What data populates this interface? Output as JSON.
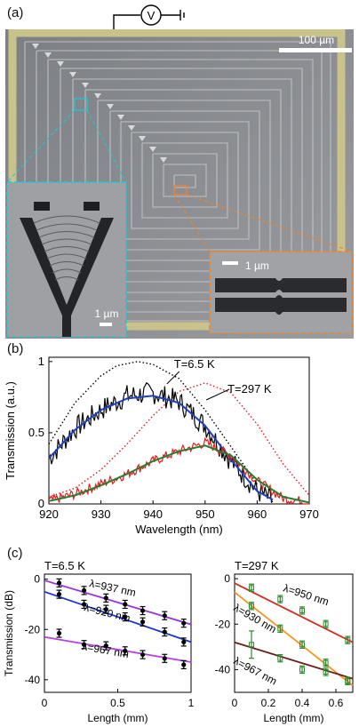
{
  "panel_a": {
    "label": "(a)",
    "meter_symbol": "V",
    "scale_bar_main": "100 µm",
    "scale_bar_left_inset": "1 µm",
    "scale_bar_right_inset": "1 µm"
  },
  "panel_b": {
    "label": "(b)"
  },
  "panel_c": {
    "label": "(c)"
  },
  "chart_data": [
    {
      "type": "line",
      "xlabel": "Wavelength (nm)",
      "ylabel": "Transmission (a.u.)",
      "xlim": [
        920,
        970
      ],
      "ylim": [
        0,
        1.03
      ],
      "xticks": [
        920,
        930,
        940,
        950,
        960,
        970
      ],
      "yticks": [
        0,
        0.5,
        1
      ],
      "ytick_labels": [
        "0",
        "0.5",
        "1"
      ],
      "annotations": [
        {
          "text": "T=6.5 K",
          "at": [
            943,
            0.78
          ]
        },
        {
          "text": "T=297 K",
          "at": [
            955,
            0.72
          ]
        }
      ],
      "series": [
        {
          "style": "dotted",
          "color": "#000000",
          "x": [
            920,
            925,
            930,
            933,
            937,
            940,
            945,
            950,
            955,
            960
          ],
          "y": [
            0.42,
            0.71,
            0.9,
            0.97,
            1.0,
            0.98,
            0.88,
            0.66,
            0.4,
            0.14
          ]
        },
        {
          "style": "dotted",
          "color": "#e41a1c",
          "x": [
            920,
            925,
            930,
            935,
            940,
            945,
            950,
            955,
            960,
            965,
            970
          ],
          "y": [
            0.05,
            0.11,
            0.24,
            0.42,
            0.62,
            0.79,
            0.85,
            0.78,
            0.56,
            0.28,
            0.06
          ]
        },
        {
          "style": "noisy",
          "color": "#000000",
          "x": [
            920,
            925,
            930,
            935,
            940,
            945,
            950,
            955,
            960,
            963
          ],
          "y": [
            0.32,
            0.53,
            0.66,
            0.76,
            0.78,
            0.72,
            0.55,
            0.3,
            0.09,
            0.02
          ]
        },
        {
          "style": "fit",
          "color": "#1f3fbf",
          "x": [
            920,
            925,
            930,
            935,
            940,
            945,
            950,
            955,
            960,
            963
          ],
          "y": [
            0.32,
            0.52,
            0.66,
            0.74,
            0.76,
            0.71,
            0.55,
            0.31,
            0.09,
            0.03
          ]
        },
        {
          "style": "noisy",
          "color": "#e41a1c",
          "x": [
            920,
            925,
            930,
            935,
            940,
            945,
            950,
            955,
            960,
            965,
            970
          ],
          "y": [
            0.02,
            0.07,
            0.14,
            0.21,
            0.3,
            0.37,
            0.43,
            0.34,
            0.16,
            0.04,
            0.01
          ]
        },
        {
          "style": "fit",
          "color": "#2c7a2c",
          "x": [
            920,
            925,
            930,
            935,
            940,
            945,
            950,
            955,
            960,
            965,
            970
          ],
          "y": [
            0.02,
            0.06,
            0.13,
            0.21,
            0.3,
            0.37,
            0.41,
            0.34,
            0.17,
            0.05,
            0.01
          ]
        }
      ]
    },
    {
      "type": "scatter",
      "title": "T=6.5 K",
      "xlabel": "Length (mm)",
      "ylabel": "Transmission (dB)",
      "xlim": [
        0,
        1
      ],
      "ylim": [
        -45,
        2
      ],
      "xticks": [
        0,
        0.5,
        1
      ],
      "xtick_labels": [
        "0",
        "0.5",
        "1"
      ],
      "yticks": [
        0,
        -20,
        -40
      ],
      "ytick_labels": [
        "0",
        "-20",
        "-40"
      ],
      "series": [
        {
          "label": "λ=937 nm",
          "color": "#9b30d9",
          "x": [
            0.1,
            0.27,
            0.42,
            0.55,
            0.67,
            0.82,
            0.95
          ],
          "y": [
            -1.5,
            -4.5,
            -7.5,
            -10,
            -12.5,
            -14.5,
            -17.5
          ],
          "fit": [
            [
              0,
              -0.5
            ],
            [
              1,
              -18
            ]
          ]
        },
        {
          "label": "λ=920 nm",
          "color": "#1c36c8",
          "x": [
            0.1,
            0.27,
            0.42,
            0.55,
            0.67,
            0.82,
            0.95
          ],
          "y": [
            -6,
            -10,
            -12,
            -15,
            -17,
            -21,
            -25
          ],
          "fit": [
            [
              0,
              -5
            ],
            [
              1,
              -25
            ]
          ]
        },
        {
          "label": "λ=967 nm",
          "color": "#b63fe0",
          "x": [
            0.1,
            0.27,
            0.42,
            0.55,
            0.67,
            0.82,
            0.95
          ],
          "y": [
            -21.5,
            -26,
            -26.5,
            -28.5,
            -30,
            -31.5,
            -34
          ],
          "fit": [
            [
              0,
              -23
            ],
            [
              1,
              -33
            ]
          ]
        }
      ]
    },
    {
      "type": "scatter",
      "title": "T=297 K",
      "xlabel": "Length (mm)",
      "ylabel": "",
      "xlim": [
        0,
        0.7
      ],
      "ylim": [
        -50,
        2
      ],
      "xticks": [
        0,
        0.2,
        0.4,
        0.6
      ],
      "xtick_labels": [
        "0",
        "0.2",
        "0.4",
        "0.6"
      ],
      "yticks": [
        0,
        -20,
        -40
      ],
      "ytick_labels": [
        "0",
        "-20",
        "-40"
      ],
      "series": [
        {
          "label": "λ=950 nm",
          "color": "#d62b1e",
          "x": [
            0.1,
            0.27,
            0.4,
            0.54,
            0.67
          ],
          "y": [
            -4,
            -9,
            -14,
            -20,
            -27
          ],
          "fit": [
            [
              0,
              -2
            ],
            [
              0.7,
              -28
            ]
          ]
        },
        {
          "label": "λ=930 nm",
          "color": "#f2961c",
          "x": [
            0.1,
            0.27,
            0.4,
            0.54,
            0.67
          ],
          "y": [
            -12,
            -22,
            -29,
            -37,
            -45
          ],
          "fit": [
            [
              0,
              -6
            ],
            [
              0.7,
              -47
            ]
          ]
        },
        {
          "label": "λ=967 nm",
          "color": "#6b1f1a",
          "x": [
            0.1,
            0.27,
            0.4,
            0.54,
            0.67
          ],
          "y": [
            -29,
            -35,
            -40,
            -41,
            -45
          ],
          "fit": [
            [
              0,
              -28
            ],
            [
              0.7,
              -44
            ]
          ]
        }
      ]
    }
  ]
}
